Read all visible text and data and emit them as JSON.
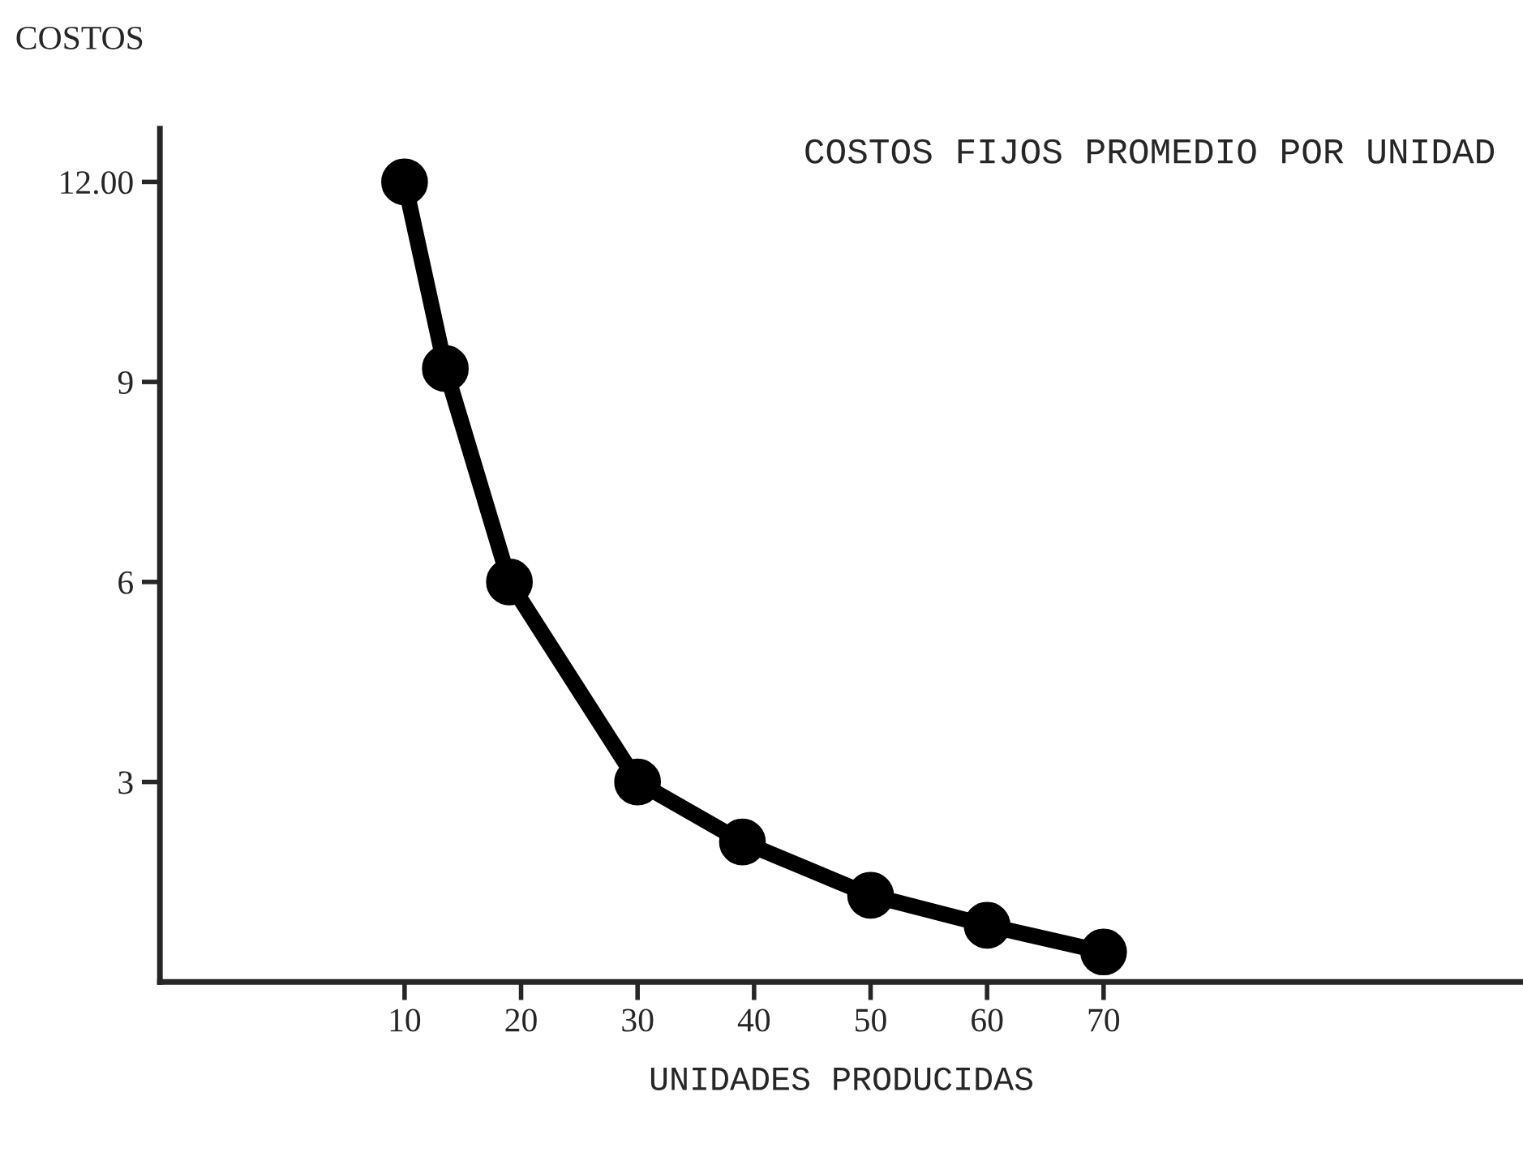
{
  "chart_data": {
    "type": "line",
    "title": "COSTOS FIJOS PROMEDIO POR UNIDAD",
    "xlabel": "UNIDADES PRODUCIDAS",
    "ylabel": "COSTOS",
    "x": [
      10,
      13.5,
      19,
      30,
      39,
      50,
      60,
      70
    ],
    "series": [
      {
        "color": "#000000",
        "values": [
          12,
          9.2,
          6,
          3,
          2.1,
          1.3,
          0.85,
          0.45
        ]
      }
    ],
    "xlim": [
      -11,
      106
    ],
    "xticks": [
      10,
      20,
      30,
      40,
      50,
      60,
      70
    ],
    "ylim": [
      0,
      12.8
    ],
    "yticks": [
      3,
      6,
      9,
      {
        "value": 12,
        "label": "12.00"
      }
    ],
    "marker": "circle",
    "line_style": "solid",
    "grid": false,
    "legend": false
  }
}
